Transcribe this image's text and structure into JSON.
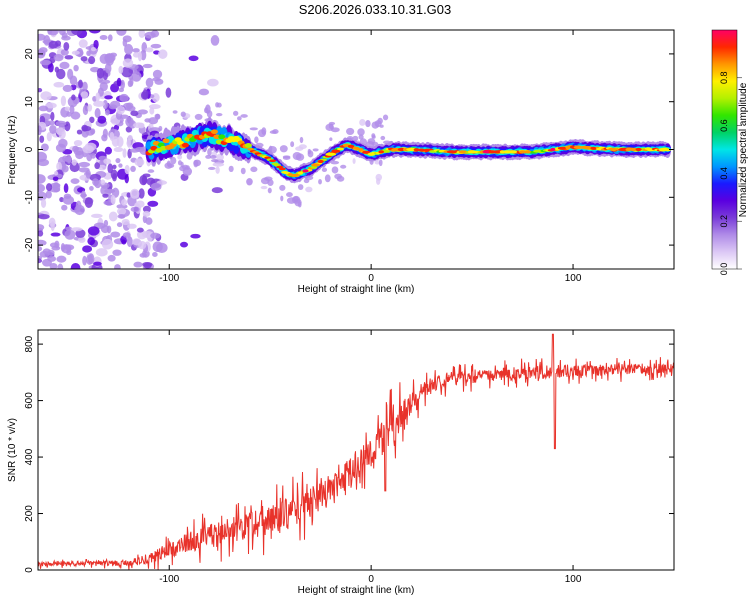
{
  "figure_title": "S206.2026.033.10.31.G03",
  "chart_data": [
    {
      "type": "heatmap",
      "title": "S206.2026.033.10.31.G03",
      "xlabel": "Height of straight line (km)",
      "ylabel": "Frequency (Hz)",
      "xlim": [
        -165,
        150
      ],
      "ylim": [
        -25,
        25
      ],
      "xticks": [
        -100,
        0,
        100
      ],
      "yticks": [
        -20,
        -10,
        0,
        10,
        20
      ],
      "colorbar": {
        "label": "Normalized spectral amplitude",
        "range": [
          0,
          1
        ],
        "ticks": [
          "0.0",
          "0.2",
          "0.4",
          "0.6",
          "0.8"
        ],
        "colors": [
          "#ffffff",
          "#dcc8f5",
          "#b08ce8",
          "#7a3cd8",
          "#5a00e0",
          "#1a1aff",
          "#0096ff",
          "#00e6e6",
          "#00d264",
          "#32e600",
          "#b4f000",
          "#fff000",
          "#ff9600",
          "#ff2800",
          "#ff0064"
        ]
      },
      "ridge": {
        "x": [
          -110,
          -100,
          -90,
          -80,
          -70,
          -60,
          -50,
          -42,
          -38,
          -30,
          -20,
          -12,
          -6,
          0,
          10,
          20,
          40,
          60,
          80,
          90,
          100,
          120,
          148
        ],
        "y": [
          0,
          1,
          2,
          3,
          2,
          0,
          -2,
          -5,
          -5.5,
          -4,
          -1,
          1,
          0,
          -1,
          0,
          0,
          -0.5,
          -0.5,
          -0.5,
          0,
          0.5,
          0,
          0
        ]
      },
      "noise_region": {
        "x_from": -165,
        "x_to": -105
      }
    },
    {
      "type": "line",
      "xlabel": "Height of straight line (km)",
      "ylabel": "SNR (10 * v/v)",
      "xlim": [
        -165,
        150
      ],
      "ylim": [
        0,
        850
      ],
      "xticks": [
        -100,
        0,
        100
      ],
      "yticks": [
        0,
        200,
        400,
        600,
        800
      ],
      "series": [
        {
          "name": "SNR",
          "color": "#e8322a",
          "trend_x": [
            -165,
            -120,
            -110,
            -100,
            -90,
            -80,
            -70,
            -60,
            -50,
            -40,
            -30,
            -20,
            -10,
            0,
            10,
            20,
            30,
            40,
            60,
            80,
            100,
            120,
            150
          ],
          "trend_y": [
            20,
            25,
            40,
            70,
            100,
            120,
            140,
            160,
            180,
            200,
            240,
            290,
            350,
            420,
            500,
            590,
            660,
            680,
            690,
            700,
            705,
            710,
            715
          ],
          "noise_x": [
            -165,
            -120,
            -100,
            -70,
            -40,
            -20,
            0,
            10,
            30,
            60,
            85,
            100,
            150
          ],
          "noise_amp": [
            10,
            15,
            40,
            70,
            80,
            70,
            80,
            90,
            40,
            30,
            35,
            30,
            25
          ],
          "spikes": [
            {
              "x": 90,
              "y": 835
            },
            {
              "x": 91,
              "y": 430
            },
            {
              "x": 7,
              "y": 280
            }
          ]
        }
      ]
    }
  ]
}
